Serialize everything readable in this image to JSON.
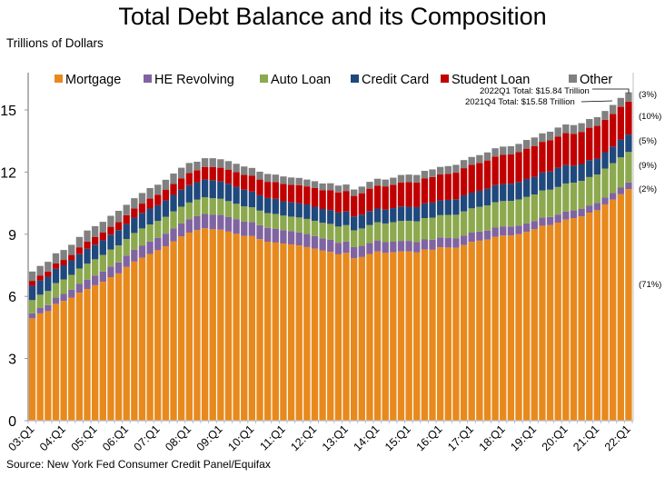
{
  "chart_data": {
    "type": "bar",
    "stacked": true,
    "title": "Total Debt Balance and its Composition",
    "ylabel": "Trillions of Dollars",
    "xlabel": "",
    "ylim": [
      0,
      16.5
    ],
    "yticks": [
      0,
      3,
      6,
      9,
      12,
      15
    ],
    "grid": false,
    "legend": "top",
    "x_tick_labels": [
      "03:Q1",
      "04:Q1",
      "05:Q1",
      "06:Q1",
      "07:Q1",
      "08:Q1",
      "09:Q1",
      "10:Q1",
      "11:Q1",
      "12:Q1",
      "13:Q1",
      "14:Q1",
      "15:Q1",
      "16:Q1",
      "17:Q1",
      "18:Q1",
      "19:Q1",
      "20:Q1",
      "21:Q1",
      "22:Q1"
    ],
    "quarters_per_tick": 4,
    "series": [
      {
        "name": "Mortgage",
        "color": "#E8891D",
        "share_label": "(71%)",
        "values": [
          4.94,
          5.18,
          5.29,
          5.64,
          5.78,
          5.94,
          6.18,
          6.36,
          6.54,
          6.7,
          6.93,
          7.11,
          7.42,
          7.68,
          7.87,
          8.05,
          8.23,
          8.42,
          8.66,
          8.89,
          9.08,
          9.2,
          9.29,
          9.24,
          9.22,
          9.13,
          9.02,
          8.92,
          8.91,
          8.76,
          8.64,
          8.6,
          8.55,
          8.51,
          8.46,
          8.38,
          8.3,
          8.21,
          8.15,
          8.03,
          8.1,
          7.84,
          7.9,
          8.05,
          8.17,
          8.1,
          8.13,
          8.17,
          8.17,
          8.12,
          8.26,
          8.25,
          8.37,
          8.36,
          8.35,
          8.48,
          8.63,
          8.69,
          8.74,
          8.88,
          8.94,
          8.94,
          9.0,
          9.12,
          9.24,
          9.41,
          9.44,
          9.56,
          9.71,
          9.78,
          9.86,
          10.04,
          10.16,
          10.44,
          10.67,
          10.93,
          11.18
        ]
      },
      {
        "name": "HE Revolving",
        "color": "#8064A2",
        "share_label": "(2%)",
        "values": [
          0.24,
          0.26,
          0.29,
          0.3,
          0.34,
          0.38,
          0.42,
          0.45,
          0.47,
          0.5,
          0.51,
          0.53,
          0.55,
          0.57,
          0.59,
          0.6,
          0.6,
          0.61,
          0.62,
          0.63,
          0.65,
          0.67,
          0.69,
          0.71,
          0.71,
          0.71,
          0.71,
          0.7,
          0.68,
          0.68,
          0.67,
          0.67,
          0.65,
          0.64,
          0.63,
          0.63,
          0.61,
          0.59,
          0.58,
          0.56,
          0.55,
          0.54,
          0.54,
          0.53,
          0.53,
          0.52,
          0.51,
          0.51,
          0.51,
          0.5,
          0.49,
          0.49,
          0.48,
          0.47,
          0.46,
          0.46,
          0.45,
          0.44,
          0.44,
          0.44,
          0.44,
          0.43,
          0.42,
          0.41,
          0.4,
          0.4,
          0.39,
          0.39,
          0.39,
          0.37,
          0.36,
          0.35,
          0.35,
          0.33,
          0.32,
          0.32,
          0.32
        ]
      },
      {
        "name": "Auto Loan",
        "color": "#8CA94E",
        "share_label": "(9%)",
        "values": [
          0.64,
          0.64,
          0.68,
          0.7,
          0.7,
          0.72,
          0.74,
          0.77,
          0.78,
          0.8,
          0.82,
          0.82,
          0.8,
          0.81,
          0.82,
          0.82,
          0.81,
          0.81,
          0.82,
          0.81,
          0.8,
          0.8,
          0.81,
          0.79,
          0.78,
          0.76,
          0.74,
          0.73,
          0.71,
          0.7,
          0.71,
          0.71,
          0.7,
          0.7,
          0.72,
          0.73,
          0.74,
          0.75,
          0.77,
          0.78,
          0.79,
          0.81,
          0.84,
          0.86,
          0.88,
          0.9,
          0.94,
          0.96,
          0.97,
          1.0,
          1.03,
          1.06,
          1.07,
          1.1,
          1.13,
          1.16,
          1.17,
          1.19,
          1.21,
          1.22,
          1.22,
          1.24,
          1.26,
          1.27,
          1.28,
          1.3,
          1.32,
          1.33,
          1.35,
          1.34,
          1.36,
          1.37,
          1.37,
          1.4,
          1.44,
          1.46,
          1.47
        ]
      },
      {
        "name": "Credit Card",
        "color": "#1F497D",
        "share_label": "(5%)",
        "values": [
          0.69,
          0.69,
          0.69,
          0.7,
          0.68,
          0.7,
          0.7,
          0.72,
          0.71,
          0.71,
          0.72,
          0.74,
          0.72,
          0.74,
          0.75,
          0.77,
          0.76,
          0.79,
          0.8,
          0.82,
          0.84,
          0.84,
          0.85,
          0.87,
          0.84,
          0.84,
          0.82,
          0.8,
          0.76,
          0.74,
          0.73,
          0.73,
          0.69,
          0.69,
          0.69,
          0.7,
          0.68,
          0.67,
          0.67,
          0.68,
          0.66,
          0.67,
          0.67,
          0.68,
          0.66,
          0.67,
          0.68,
          0.7,
          0.68,
          0.69,
          0.71,
          0.73,
          0.71,
          0.73,
          0.75,
          0.78,
          0.76,
          0.78,
          0.81,
          0.83,
          0.82,
          0.83,
          0.84,
          0.87,
          0.85,
          0.87,
          0.88,
          0.93,
          0.89,
          0.82,
          0.81,
          0.82,
          0.77,
          0.79,
          0.8,
          0.86,
          0.84
        ]
      },
      {
        "name": "Student Loan",
        "color": "#C00000",
        "share_label": "(10%)",
        "values": [
          0.24,
          0.24,
          0.25,
          0.25,
          0.26,
          0.26,
          0.33,
          0.35,
          0.36,
          0.37,
          0.38,
          0.39,
          0.43,
          0.44,
          0.45,
          0.48,
          0.51,
          0.51,
          0.53,
          0.55,
          0.58,
          0.58,
          0.61,
          0.64,
          0.66,
          0.68,
          0.71,
          0.72,
          0.76,
          0.76,
          0.78,
          0.81,
          0.84,
          0.85,
          0.87,
          0.87,
          0.9,
          0.91,
          0.96,
          0.97,
          0.99,
          0.99,
          1.03,
          1.08,
          1.11,
          1.12,
          1.13,
          1.16,
          1.19,
          1.19,
          1.2,
          1.23,
          1.26,
          1.26,
          1.28,
          1.31,
          1.34,
          1.34,
          1.36,
          1.38,
          1.41,
          1.41,
          1.44,
          1.46,
          1.49,
          1.48,
          1.5,
          1.51,
          1.54,
          1.54,
          1.55,
          1.56,
          1.58,
          1.57,
          1.58,
          1.58,
          1.59
        ]
      },
      {
        "name": "Other",
        "color": "#808080",
        "share_label": "(3%)",
        "values": [
          0.45,
          0.46,
          0.47,
          0.49,
          0.48,
          0.49,
          0.5,
          0.53,
          0.53,
          0.52,
          0.53,
          0.54,
          0.5,
          0.5,
          0.51,
          0.51,
          0.48,
          0.49,
          0.5,
          0.51,
          0.49,
          0.41,
          0.42,
          0.42,
          0.41,
          0.41,
          0.4,
          0.4,
          0.38,
          0.38,
          0.38,
          0.36,
          0.36,
          0.35,
          0.35,
          0.33,
          0.33,
          0.32,
          0.33,
          0.33,
          0.31,
          0.31,
          0.32,
          0.33,
          0.33,
          0.33,
          0.34,
          0.36,
          0.36,
          0.36,
          0.37,
          0.37,
          0.36,
          0.37,
          0.38,
          0.39,
          0.38,
          0.38,
          0.39,
          0.4,
          0.4,
          0.4,
          0.4,
          0.42,
          0.41,
          0.41,
          0.42,
          0.43,
          0.42,
          0.42,
          0.42,
          0.42,
          0.42,
          0.42,
          0.43,
          0.43,
          0.45
        ]
      }
    ],
    "annotations": [
      "2022Q1 Total: $15.84 Trillion",
      "2021Q4 Total: $15.58 Trillion"
    ],
    "source": "Source: New York Fed Consumer Credit Panel/Equifax"
  }
}
